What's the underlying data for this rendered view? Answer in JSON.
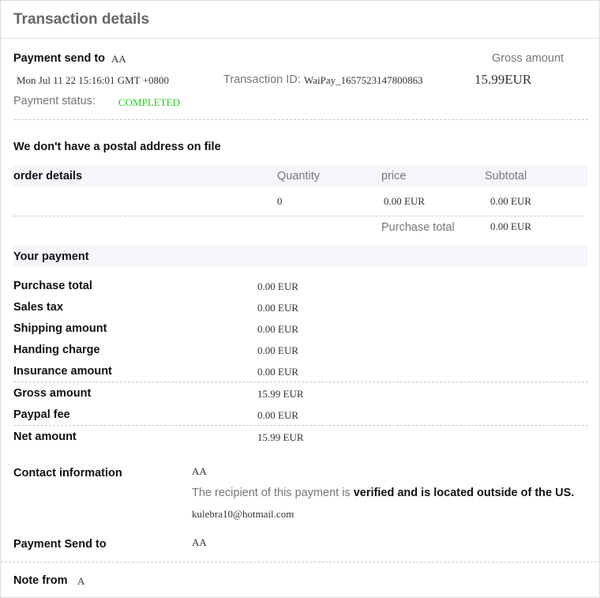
{
  "title": "Transaction details",
  "summary": {
    "send_to_label": "Payment send to",
    "send_to_value": "AA",
    "date": "Mon Jul 11 22 15:16:01 GMT +0800",
    "txn_label": "Transaction ID:",
    "txn_value": "WaiPay_1657523147800863",
    "gross_label": "Gross amount",
    "gross_value": "15.99EUR",
    "status_label": "Payment status:",
    "status_value": "COMPLETED",
    "status_color": "#22cc22"
  },
  "postal": "We don't have a postal address on file",
  "order": {
    "headers": [
      "order details",
      "Quantity",
      "price",
      "Subtotal"
    ],
    "row": {
      "quantity": "0",
      "price": "0.00 EUR",
      "subtotal": "0.00 EUR"
    },
    "total_label": "Purchase total",
    "total_value": "0.00 EUR"
  },
  "payment": {
    "title": "Your payment",
    "rows": [
      {
        "label": "Purchase total",
        "value": "0.00 EUR"
      },
      {
        "label": "Sales tax",
        "value": "0.00 EUR"
      },
      {
        "label": "Shipping amount",
        "value": "0.00 EUR"
      },
      {
        "label": "Handing charge",
        "value": "0.00 EUR"
      },
      {
        "label": "Insurance amount",
        "value": "0.00 EUR"
      },
      {
        "label": "Gross amount",
        "value": "15.99 EUR"
      },
      {
        "label": "Paypal fee",
        "value": "0.00 EUR"
      },
      {
        "label": "Net amount",
        "value": "15.99 EUR"
      }
    ]
  },
  "contact": {
    "label": "Contact information",
    "name": "AA",
    "note_prefix": "The recipient of this payment is ",
    "note_bold": "verified and is located outside of the US.",
    "email": "kulebra10@hotmail.com"
  },
  "send_to": {
    "label": "Payment Send to",
    "value": "AA"
  },
  "note": {
    "label": "Note from",
    "value": "A"
  }
}
